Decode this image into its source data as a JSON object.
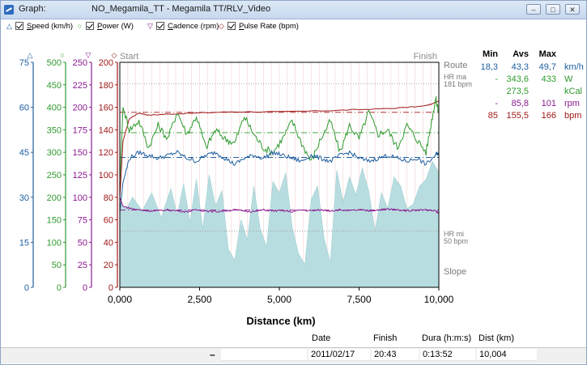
{
  "window": {
    "title": "Graph:",
    "document": "NO_Megamila_TT - Megamila TT/RLV_Video",
    "minimize": "–",
    "maximize": "□",
    "close": "✕"
  },
  "legend": [
    {
      "marker": "△",
      "label": "Speed (km/h)",
      "color": "#1f5fa0"
    },
    {
      "marker": "○",
      "label": "Power (W)",
      "color": "#2e9a2e"
    },
    {
      "marker": "▽",
      "label": "Cadence (rpm)",
      "color": "#8a1a90"
    },
    {
      "marker": "◇",
      "label": "Pulse Rate (bpm)",
      "color": "#a01818"
    }
  ],
  "chart_data": {
    "type": "line",
    "xlabel": "Distance (km)",
    "x_ticks": [
      "0,000",
      "2,500",
      "5,000",
      "7,500",
      "10,000"
    ],
    "xlim": [
      0,
      10000
    ],
    "top_left_label": "Start",
    "top_right_label": "Finish",
    "right_labels": {
      "route": "Route",
      "hr_max": "HR ma",
      "hr_max_value": "181 bpm",
      "hr_min": "HR mi",
      "hr_min_value": "50 bpm",
      "slope": "Slope"
    },
    "axes": [
      {
        "name": "speed",
        "color": "#1f5fa0",
        "marker": "△",
        "ticks": [
          "0",
          "15",
          "30",
          "45",
          "60",
          "75"
        ],
        "range": [
          0,
          75
        ]
      },
      {
        "name": "power",
        "color": "#2e9a2e",
        "marker": "○",
        "ticks": [
          "0",
          "50",
          "100",
          "150",
          "200",
          "250",
          "300",
          "350",
          "400",
          "450",
          "500"
        ],
        "range": [
          0,
          500
        ]
      },
      {
        "name": "cadence",
        "color": "#8a1a90",
        "marker": "▽",
        "ticks": [
          "0",
          "25",
          "50",
          "75",
          "100",
          "125",
          "150",
          "175",
          "200",
          "225",
          "250"
        ],
        "range": [
          0,
          250
        ]
      },
      {
        "name": "pulse",
        "color": "#a01818",
        "marker": "◇",
        "ticks": [
          "0",
          "20",
          "40",
          "60",
          "80",
          "100",
          "120",
          "140",
          "160",
          "180",
          "200"
        ],
        "range": [
          0,
          200
        ]
      }
    ],
    "series": [
      {
        "name": "Pulse Rate",
        "unit": "bpm",
        "color": "#a01818",
        "axis_max": 200,
        "x": [
          0,
          100,
          300,
          600,
          900,
          1500,
          2500,
          3500,
          5000,
          6500,
          7500,
          8500,
          9500,
          9800,
          10000
        ],
        "y": [
          80,
          130,
          150,
          155,
          153,
          154,
          155,
          156,
          156,
          157,
          158,
          159,
          161,
          163,
          166
        ]
      },
      {
        "name": "Power",
        "unit": "W",
        "color": "#2e9a2e",
        "axis_max": 500,
        "x": [
          0,
          100,
          300,
          600,
          900,
          1200,
          1500,
          1800,
          2100,
          2400,
          2700,
          3000,
          3300,
          3600,
          3900,
          4200,
          4500,
          4800,
          5100,
          5400,
          5700,
          6000,
          6300,
          6600,
          6900,
          7200,
          7500,
          7800,
          8100,
          8400,
          8700,
          9000,
          9300,
          9600,
          9800,
          9900,
          10000
        ],
        "y": [
          230,
          400,
          350,
          370,
          310,
          360,
          330,
          390,
          340,
          380,
          310,
          350,
          330,
          320,
          380,
          340,
          310,
          300,
          330,
          370,
          320,
          280,
          330,
          370,
          300,
          360,
          330,
          390,
          340,
          350,
          310,
          360,
          330,
          300,
          380,
          420,
          390
        ]
      },
      {
        "name": "Speed",
        "unit": "km/h",
        "color": "#1f5fa0",
        "axis_max": 75,
        "x": [
          0,
          100,
          300,
          600,
          900,
          1200,
          1500,
          1800,
          2100,
          2400,
          2700,
          3000,
          3300,
          3600,
          3900,
          4200,
          4500,
          4800,
          5100,
          5400,
          5700,
          6000,
          6300,
          6600,
          6900,
          7200,
          7500,
          7800,
          8100,
          8400,
          8700,
          9000,
          9300,
          9600,
          9900,
          10000
        ],
        "y": [
          25,
          35,
          43,
          45,
          44,
          43,
          44,
          45,
          43,
          42,
          44,
          45,
          43,
          41,
          43,
          44,
          43,
          45,
          44,
          43,
          42,
          44,
          43,
          42,
          44,
          45,
          43,
          42,
          43,
          44,
          43,
          42,
          43,
          41,
          44,
          45
        ]
      },
      {
        "name": "Cadence",
        "unit": "rpm",
        "color": "#8a1a90",
        "axis_max": 250,
        "x": [
          0,
          100,
          300,
          600,
          900,
          1200,
          1500,
          1800,
          2100,
          2400,
          2700,
          3000,
          3300,
          3600,
          3900,
          4200,
          4500,
          4800,
          5100,
          5400,
          5700,
          6000,
          6300,
          6600,
          6900,
          7200,
          7500,
          7800,
          8100,
          8400,
          8700,
          9000,
          9300,
          9600,
          9900,
          10000
        ],
        "y": [
          100,
          90,
          88,
          86,
          85,
          85,
          86,
          85,
          84,
          86,
          85,
          84,
          85,
          86,
          85,
          84,
          86,
          85,
          85,
          84,
          86,
          85,
          86,
          85,
          86,
          85,
          86,
          85,
          86,
          87,
          86,
          85,
          86,
          86,
          85,
          82
        ]
      },
      {
        "name": "Slope",
        "color": "#b8dde0",
        "area": true,
        "x": [
          0,
          200,
          400,
          700,
          1000,
          1300,
          1600,
          1800,
          2000,
          2200,
          2400,
          2600,
          2800,
          3000,
          3200,
          3400,
          3600,
          3800,
          4000,
          4200,
          4400,
          4600,
          4800,
          5000,
          5200,
          5400,
          5600,
          5800,
          6000,
          6200,
          6400,
          6600,
          6800,
          7000,
          7200,
          7400,
          7600,
          7800,
          8000,
          8200,
          8400,
          8600,
          8800,
          9000,
          9200,
          9400,
          9600,
          9800,
          10000
        ],
        "y": [
          75,
          70,
          80,
          68,
          84,
          62,
          88,
          64,
          92,
          58,
          96,
          52,
          100,
          72,
          86,
          34,
          24,
          60,
          42,
          90,
          52,
          36,
          94,
          84,
          102,
          54,
          30,
          20,
          78,
          90,
          44,
          22,
          104,
          76,
          98,
          82,
          106,
          86,
          50,
          84,
          70,
          98,
          90,
          70,
          74,
          90,
          96,
          112,
          102
        ]
      }
    ],
    "reference_lines": [
      {
        "label": "HR max",
        "value": 181,
        "unit": "bpm",
        "style": "dotted",
        "color": "#a0a0a0"
      },
      {
        "label": "HR min",
        "value": 50,
        "unit": "bpm",
        "style": "dotted",
        "color": "#a0a0a0"
      },
      {
        "label": "Pulse avg",
        "value": 155.5,
        "style": "dashdot",
        "color": "#a01818"
      },
      {
        "label": "Power avg",
        "value": 343.6,
        "style": "dashdot",
        "color": "#2e9a2e"
      },
      {
        "label": "Speed avg",
        "value": 43.3,
        "style": "dashdot",
        "color": "#1f5fa0"
      },
      {
        "label": "Cadence avg",
        "value": 85.8,
        "style": "dashdot",
        "color": "#8a1a90"
      }
    ]
  },
  "stats": {
    "headers": [
      "Min",
      "Avs",
      "Max"
    ],
    "rows": [
      {
        "min": "18,3",
        "avg": "43,3",
        "max": "49,7",
        "unit": "km/h",
        "color": "#1f5fa0"
      },
      {
        "min": "-",
        "avg": "343,6",
        "max": "433",
        "unit": "W",
        "color": "#2e9a2e"
      },
      {
        "min": "",
        "avg": "273,5",
        "max": "",
        "unit": "kCal",
        "color": "#2e9a2e"
      },
      {
        "min": "-",
        "avg": "85,8",
        "max": "101",
        "unit": "rpm",
        "color": "#8a1a90"
      },
      {
        "min": "85",
        "avg": "155,5",
        "max": "166",
        "unit": "bpm",
        "color": "#a01818"
      }
    ]
  },
  "summary": {
    "dash": "–",
    "date_label": "Date",
    "date_value": "2011/02/17",
    "finish_label": "Finish",
    "finish_value": "20:43",
    "duration_label": "Dura (h:m:s)",
    "duration_value": "0:13:52",
    "distance_label": "Dist (km)",
    "distance_value": "10,004"
  }
}
